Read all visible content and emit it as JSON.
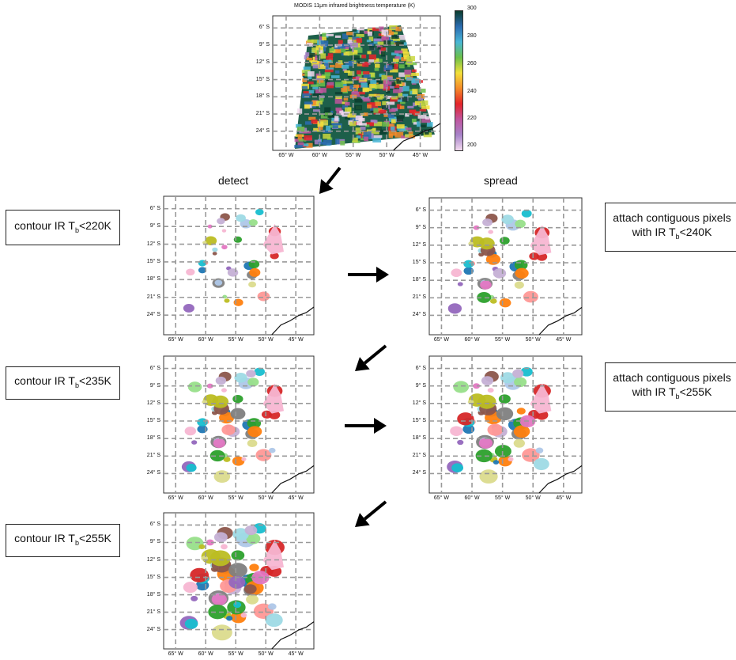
{
  "top_map": {
    "title": "MODIS 11μm infrared brightness temperature (K)",
    "colorbar_ticks": [
      "300",
      "280",
      "260",
      "240",
      "220",
      "200"
    ]
  },
  "lat_labels": [
    "6° S",
    "9° S",
    "12° S",
    "15° S",
    "18° S",
    "21° S",
    "24° S"
  ],
  "lon_labels": [
    "65° W",
    "60° W",
    "55° W",
    "50° W",
    "45° W"
  ],
  "columns": {
    "detect": "detect",
    "spread": "spread"
  },
  "boxes": [
    {
      "prefix": "contour IR T",
      "sub": "b",
      "suffix": "<220K"
    },
    {
      "prefix": "contour IR T",
      "sub": "b",
      "suffix": "<235K"
    },
    {
      "prefix": "contour IR T",
      "sub": "b",
      "suffix": "<255K"
    },
    {
      "line1": "attach contiguous pixels",
      "prefix": "with IR T",
      "sub": "b",
      "suffix": "<240K"
    },
    {
      "line1": "attach contiguous pixels",
      "prefix": "with IR T",
      "sub": "b",
      "suffix": "<255K"
    }
  ],
  "colors": {
    "palette": [
      "#e377c2",
      "#1f77b4",
      "#ff7f0e",
      "#2ca02c",
      "#d62728",
      "#9467bd",
      "#8c564b",
      "#bcbd22",
      "#17becf",
      "#7f7f7f",
      "#f7b6d2",
      "#aec7e8",
      "#98df8a",
      "#ff9896",
      "#c5b0d5",
      "#dbdb8d",
      "#9edae5"
    ],
    "colormap": [
      "#0b3d2e",
      "#2b6cb0",
      "#49b6d6",
      "#6cc04a",
      "#c9d740",
      "#f3e03b",
      "#f58b2a",
      "#e4242a",
      "#c0559e",
      "#a783c9",
      "#f2d9ee"
    ]
  }
}
